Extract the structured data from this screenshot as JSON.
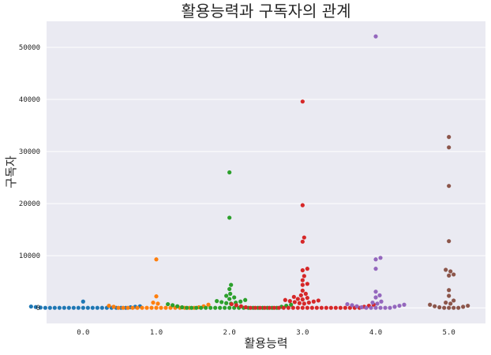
{
  "chart_data": {
    "type": "scatter",
    "style": "swarm",
    "title": "활용능력과 구독자의 관계",
    "xlabel": "활용능력",
    "ylabel": "구독자",
    "categories": [
      "0.0",
      "1.0",
      "2.0",
      "3.0",
      "4.0",
      "5.0"
    ],
    "ylim": [
      -3000,
      55000
    ],
    "yticks": [
      0,
      10000,
      20000,
      30000,
      40000,
      50000
    ],
    "grid": true,
    "colors": [
      "#1f77b4",
      "#ff7f0e",
      "#2ca02c",
      "#d62728",
      "#9467bd",
      "#8c564b"
    ],
    "background": "#eaeaf2",
    "series": [
      {
        "category": "0.0",
        "values": [
          0,
          0,
          0,
          0,
          0,
          0,
          0,
          0,
          0,
          0,
          0,
          0,
          0,
          0,
          0,
          0,
          0,
          0,
          50,
          100,
          150,
          200,
          250,
          300,
          1200
        ]
      },
      {
        "category": "1.0",
        "values": [
          0,
          0,
          0,
          0,
          0,
          0,
          0,
          0,
          0,
          0,
          0,
          0,
          0,
          0,
          0,
          0,
          0,
          100,
          200,
          300,
          400,
          600,
          800,
          1000,
          2200,
          9300
        ]
      },
      {
        "category": "2.0",
        "values": [
          0,
          0,
          0,
          0,
          0,
          0,
          0,
          0,
          0,
          0,
          0,
          0,
          0,
          0,
          0,
          0,
          0,
          0,
          0,
          0,
          100,
          200,
          300,
          400,
          500,
          600,
          700,
          800,
          900,
          1000,
          1100,
          1200,
          1300,
          1500,
          1700,
          2000,
          2300,
          2700,
          3600,
          4400,
          17300,
          26000
        ]
      },
      {
        "category": "3.0",
        "values": [
          0,
          0,
          0,
          0,
          0,
          0,
          0,
          0,
          0,
          0,
          0,
          0,
          0,
          0,
          0,
          0,
          0,
          0,
          0,
          0,
          0,
          0,
          0,
          0,
          100,
          200,
          300,
          400,
          500,
          600,
          700,
          800,
          900,
          1000,
          1100,
          1200,
          1300,
          1400,
          1500,
          1600,
          1700,
          1900,
          2100,
          2400,
          2700,
          3300,
          4400,
          4600,
          5300,
          6100,
          7200,
          7500,
          12700,
          13500,
          19700,
          39600
        ]
      },
      {
        "category": "4.0",
        "values": [
          0,
          0,
          0,
          0,
          0,
          0,
          100,
          200,
          300,
          400,
          500,
          600,
          700,
          800,
          1000,
          1200,
          2000,
          2400,
          3100,
          7500,
          9300,
          9600,
          52100
        ]
      },
      {
        "category": "5.0",
        "values": [
          0,
          0,
          0,
          0,
          100,
          200,
          300,
          400,
          600,
          800,
          1000,
          1400,
          2300,
          3400,
          6200,
          6400,
          7000,
          7300,
          12800,
          23400,
          30800,
          32800
        ]
      }
    ]
  }
}
